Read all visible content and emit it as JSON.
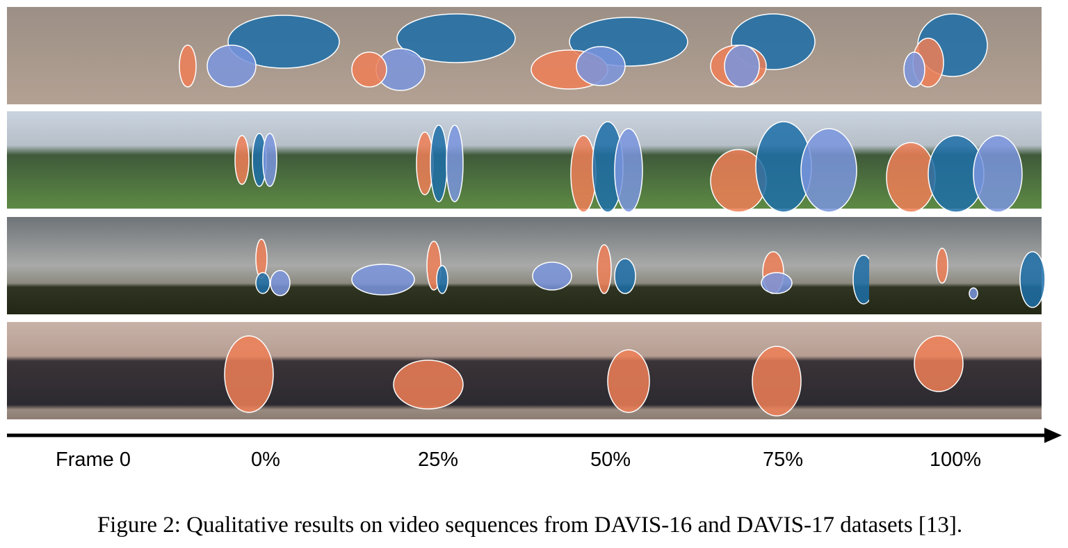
{
  "figure": {
    "column_labels": [
      "Frame 0",
      "0%",
      "25%",
      "50%",
      "75%",
      "100%"
    ],
    "caption": "Figure 2: Qualitative results on video sequences from DAVIS-16 and DAVIS-17 datasets [13]."
  }
}
